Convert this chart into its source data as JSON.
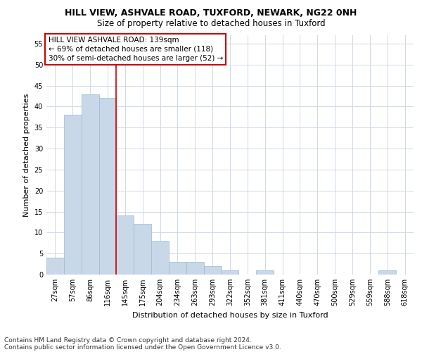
{
  "title1": "HILL VIEW, ASHVALE ROAD, TUXFORD, NEWARK, NG22 0NH",
  "title2": "Size of property relative to detached houses in Tuxford",
  "xlabel": "Distribution of detached houses by size in Tuxford",
  "ylabel": "Number of detached properties",
  "categories": [
    "27sqm",
    "57sqm",
    "86sqm",
    "116sqm",
    "145sqm",
    "175sqm",
    "204sqm",
    "234sqm",
    "263sqm",
    "293sqm",
    "322sqm",
    "352sqm",
    "381sqm",
    "411sqm",
    "440sqm",
    "470sqm",
    "500sqm",
    "529sqm",
    "559sqm",
    "588sqm",
    "618sqm"
  ],
  "values": [
    4,
    38,
    43,
    42,
    14,
    12,
    8,
    3,
    3,
    2,
    1,
    0,
    1,
    0,
    0,
    0,
    0,
    0,
    0,
    1,
    0
  ],
  "bar_color": "#c8d8e8",
  "bar_edge_color": "#a0b8cc",
  "bar_linewidth": 0.5,
  "grid_color": "#d0d8e8",
  "annotation_title": "HILL VIEW ASHVALE ROAD: 139sqm",
  "annotation_line1": "← 69% of detached houses are smaller (118)",
  "annotation_line2": "30% of semi-detached houses are larger (52) →",
  "annotation_box_color": "#ffffff",
  "annotation_box_edge": "#cc0000",
  "vline_color": "#cc0000",
  "vline_x": 3.5,
  "ylim": [
    0,
    57
  ],
  "yticks": [
    0,
    5,
    10,
    15,
    20,
    25,
    30,
    35,
    40,
    45,
    50,
    55
  ],
  "footer1": "Contains HM Land Registry data © Crown copyright and database right 2024.",
  "footer2": "Contains public sector information licensed under the Open Government Licence v3.0.",
  "title1_fontsize": 9,
  "title2_fontsize": 8.5,
  "xlabel_fontsize": 8,
  "ylabel_fontsize": 8,
  "tick_fontsize": 7,
  "annotation_fontsize": 7.5,
  "footer_fontsize": 6.5
}
